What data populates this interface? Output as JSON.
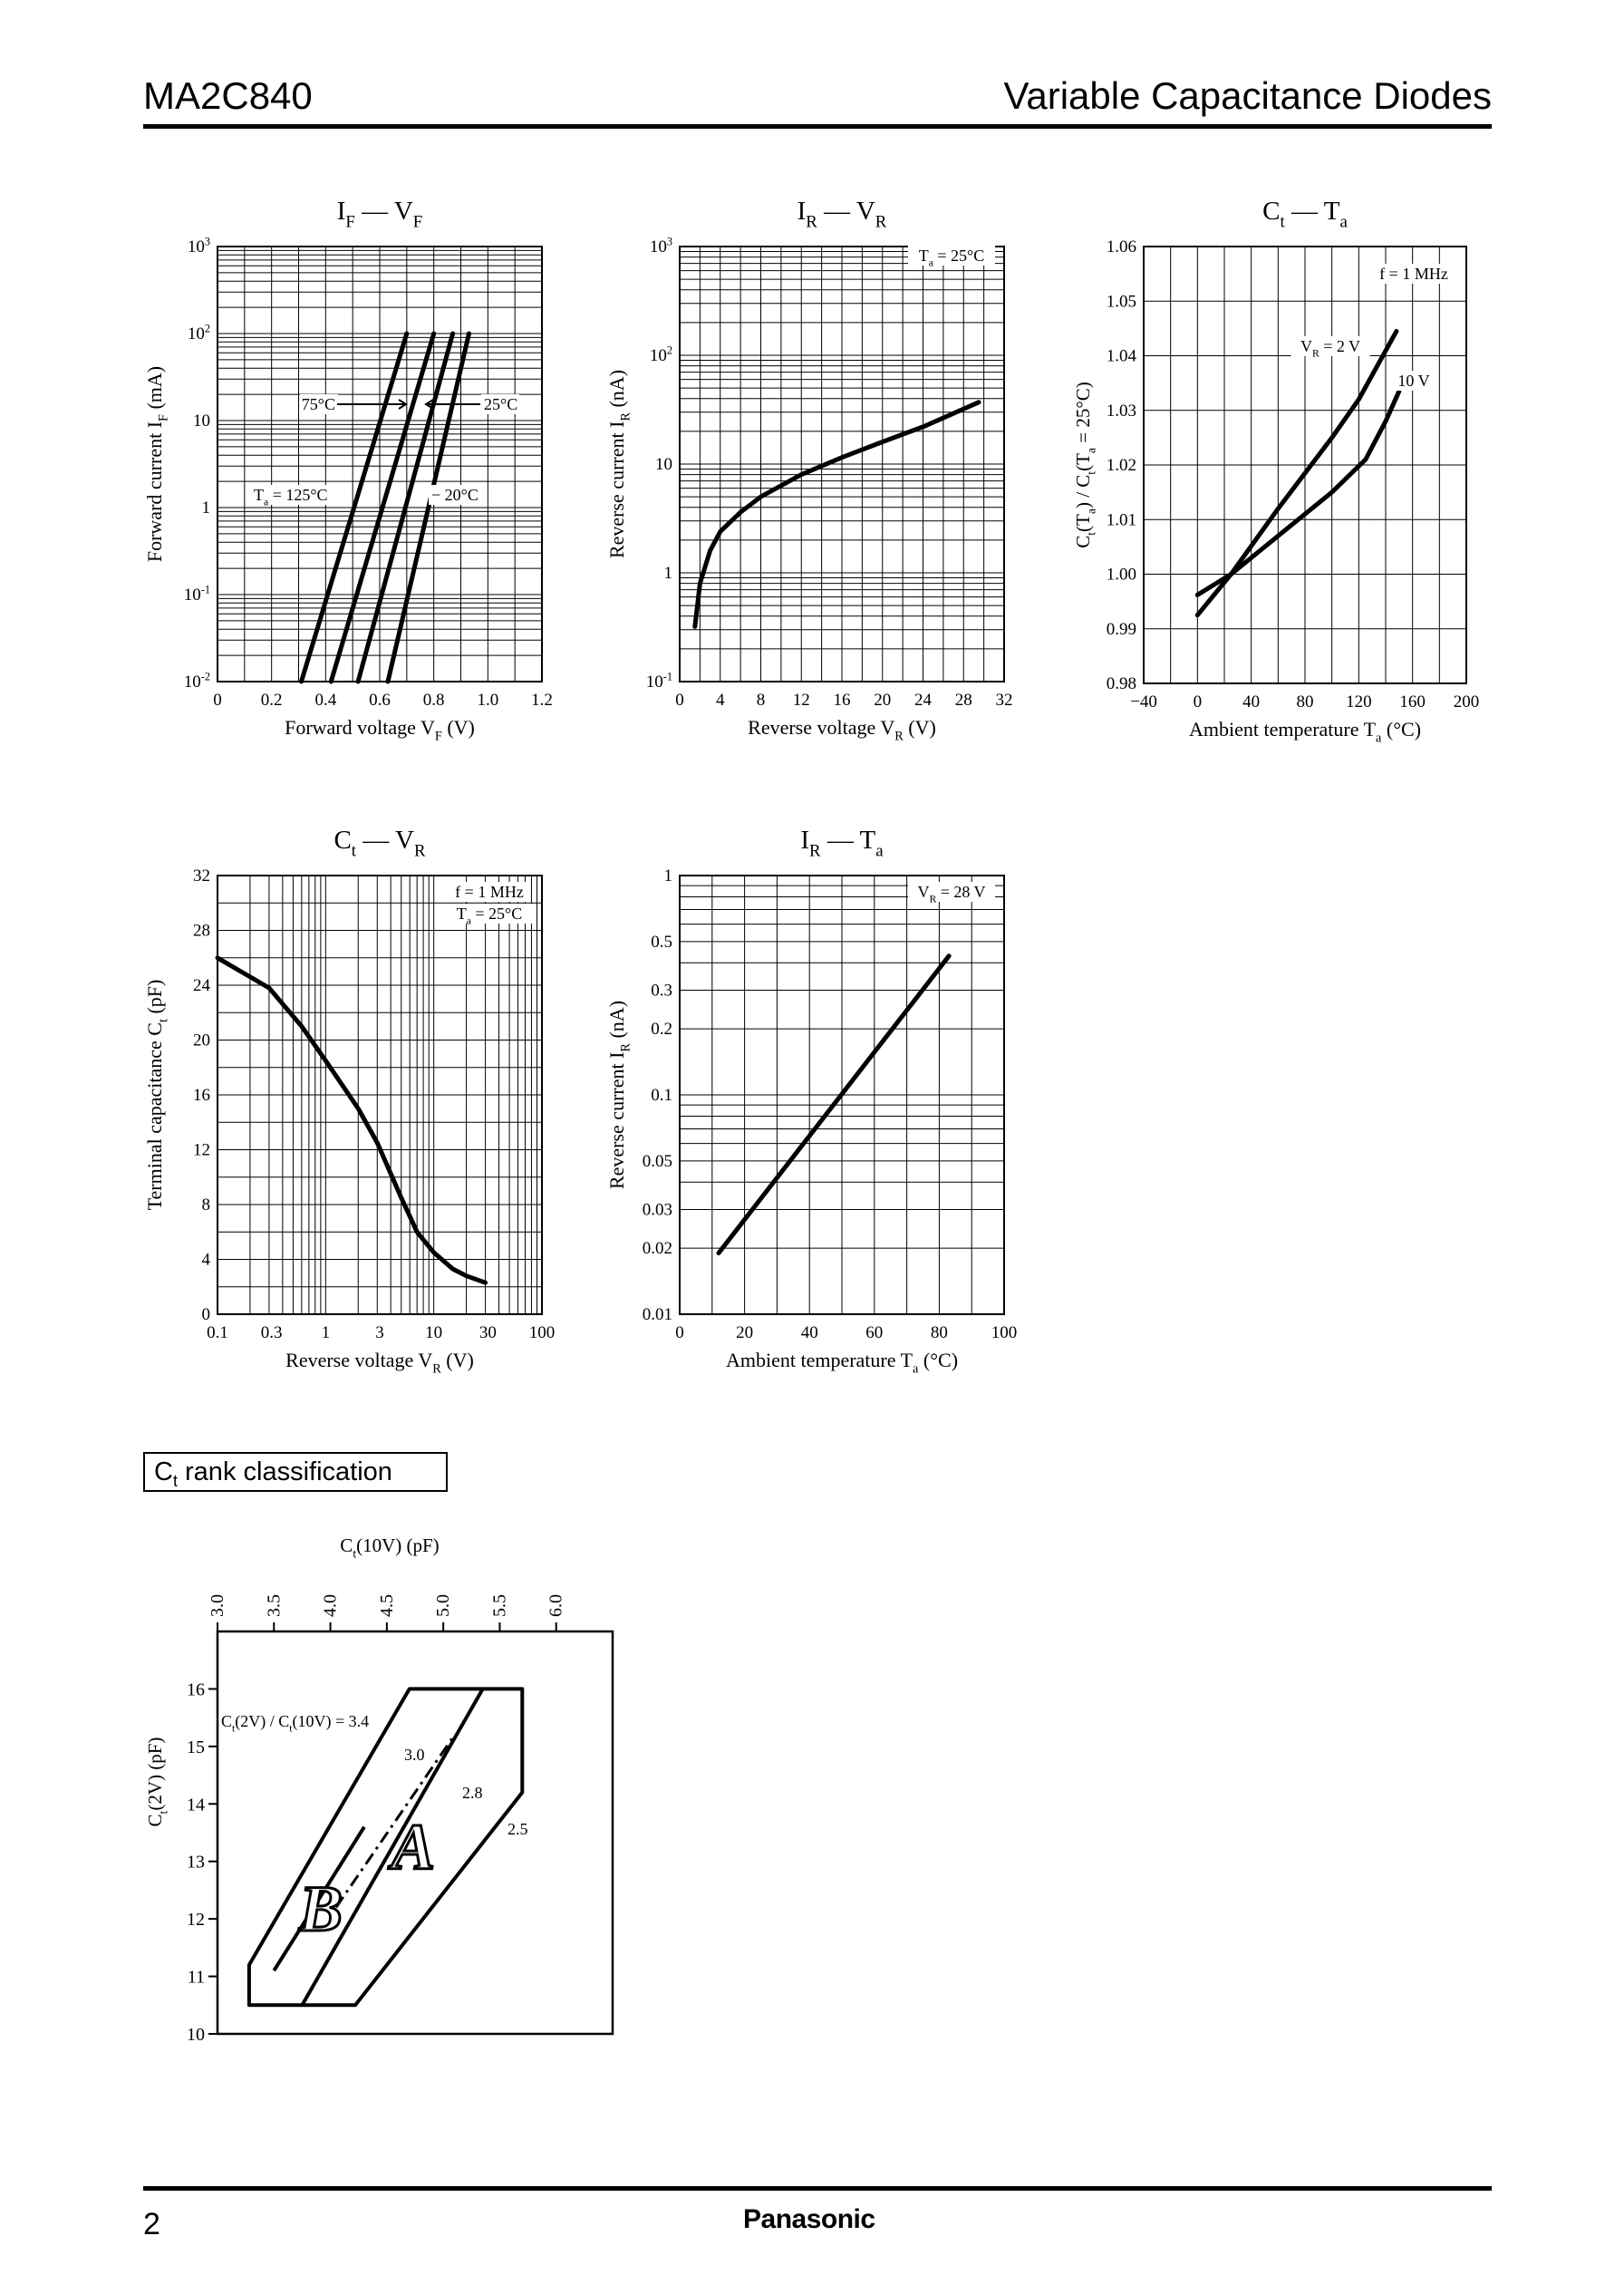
{
  "header": {
    "part_number": "MA2C840",
    "doc_type": "Variable Capacitance Diodes"
  },
  "footer": {
    "page": "2",
    "brand": "Panasonic"
  },
  "rank_section": {
    "title_prefix": "C",
    "title_sub": "t",
    "title_suffix": " rank classification"
  },
  "chart_data": [
    {
      "id": "if-vf",
      "type": "line",
      "title": "I_F — V_F",
      "xlabel": "Forward voltage V_F (V)",
      "ylabel": "Forward current I_F (mA)",
      "xlim": [
        0,
        1.2
      ],
      "ylim": [
        0.01,
        1000
      ],
      "yscale": "log",
      "xticks": [
        "0",
        "0.2",
        "0.4",
        "0.6",
        "0.8",
        "1.0",
        "1.2"
      ],
      "yticks": [
        "10^-2",
        "10^-1",
        "1",
        "10",
        "10^2",
        "10^3"
      ],
      "series": [
        {
          "name": "Ta = 125°C",
          "points": [
            [
              0.31,
              0.01
            ],
            [
              0.7,
              100
            ]
          ]
        },
        {
          "name": "75°C",
          "points": [
            [
              0.42,
              0.01
            ],
            [
              0.8,
              100
            ]
          ]
        },
        {
          "name": "25°C",
          "points": [
            [
              0.52,
              0.01
            ],
            [
              0.87,
              100
            ]
          ]
        },
        {
          "name": "−20°C",
          "points": [
            [
              0.63,
              0.01
            ],
            [
              0.93,
              100
            ]
          ]
        }
      ],
      "annotations": [
        "75°C",
        "25°C",
        "Ta = 125°C",
        "− 20°C"
      ]
    },
    {
      "id": "ir-vr",
      "type": "line",
      "title": "I_R — V_R",
      "xlabel": "Reverse voltage V_R (V)",
      "ylabel": "Reverse current I_R (nA)",
      "xlim": [
        0,
        32
      ],
      "ylim": [
        0.1,
        1000
      ],
      "yscale": "log",
      "xticks": [
        "0",
        "4",
        "8",
        "12",
        "16",
        "20",
        "24",
        "28",
        "32"
      ],
      "yticks": [
        "10^-1",
        "1",
        "10",
        "10^2",
        "10^3"
      ],
      "series": [
        {
          "name": "",
          "points": [
            [
              1.5,
              0.32
            ],
            [
              2,
              0.8
            ],
            [
              3,
              1.6
            ],
            [
              4,
              2.4
            ],
            [
              6,
              3.6
            ],
            [
              8,
              5.0
            ],
            [
              12,
              8.0
            ],
            [
              16,
              11.5
            ],
            [
              20,
              16
            ],
            [
              24,
              22
            ],
            [
              29.5,
              37
            ]
          ]
        }
      ],
      "annotations": [
        "Ta = 25°C"
      ]
    },
    {
      "id": "ct-ta",
      "type": "line",
      "title": "C_t — T_a",
      "xlabel": "Ambient temperature T_a (°C)",
      "ylabel": "C_t(T_a) / C_t(T_a = 25°C)",
      "xlim": [
        -40,
        200
      ],
      "ylim": [
        0.98,
        1.06
      ],
      "xticks": [
        "−40",
        "0",
        "40",
        "80",
        "120",
        "160",
        "200"
      ],
      "yticks": [
        "0.98",
        "0.99",
        "1.00",
        "1.01",
        "1.02",
        "1.03",
        "1.04",
        "1.05",
        "1.06"
      ],
      "series": [
        {
          "name": "VR = 2 V",
          "points": [
            [
              0,
              0.9925
            ],
            [
              25,
              1.0
            ],
            [
              60,
              1.012
            ],
            [
              100,
              1.025
            ],
            [
              120,
              1.032
            ],
            [
              148,
              1.0445
            ]
          ]
        },
        {
          "name": "10 V",
          "points": [
            [
              0,
              0.9962
            ],
            [
              25,
              1.0
            ],
            [
              60,
              1.007
            ],
            [
              100,
              1.015
            ],
            [
              125,
              1.021
            ],
            [
              140,
              1.028
            ],
            [
              150,
              1.0335
            ]
          ]
        }
      ],
      "annotations": [
        "f = 1 MHz",
        "VR = 2 V",
        "10 V"
      ]
    },
    {
      "id": "ct-vr",
      "type": "line",
      "title": "C_t — V_R",
      "xlabel": "Reverse voltage V_R (V)",
      "ylabel": "Terminal capacitance C_t (pF)",
      "xlim": [
        0.1,
        100
      ],
      "xscale": "log",
      "ylim": [
        0,
        32
      ],
      "xticks": [
        "0.1",
        "0.3",
        "1",
        "3",
        "10",
        "30",
        "100"
      ],
      "yticks": [
        "0",
        "4",
        "8",
        "12",
        "16",
        "20",
        "24",
        "28",
        "32"
      ],
      "series": [
        {
          "name": "",
          "points": [
            [
              0.1,
              26.0
            ],
            [
              0.3,
              23.8
            ],
            [
              0.6,
              21.0
            ],
            [
              1,
              18.5
            ],
            [
              2,
              15.0
            ],
            [
              3,
              12.5
            ],
            [
              5,
              8.5
            ],
            [
              7,
              6.0
            ],
            [
              10,
              4.5
            ],
            [
              15,
              3.3
            ],
            [
              20,
              2.8
            ],
            [
              30,
              2.3
            ]
          ]
        }
      ],
      "annotations": [
        "f = 1 MHz",
        "Ta = 25°C"
      ]
    },
    {
      "id": "ir-ta",
      "type": "line",
      "title": "I_R — T_a",
      "xlabel": "Ambient temperature T_a (°C)",
      "ylabel": "Reverse current I_R (nA)",
      "xlim": [
        0,
        100
      ],
      "ylim": [
        0.01,
        1
      ],
      "yscale": "log",
      "xticks": [
        "0",
        "20",
        "40",
        "60",
        "80",
        "100"
      ],
      "yticks": [
        "0.01",
        "0.02",
        "0.03",
        "0.05",
        "0.1",
        "0.2",
        "0.3",
        "0.5",
        "1"
      ],
      "series": [
        {
          "name": "",
          "points": [
            [
              12,
              0.019
            ],
            [
              83,
              0.43
            ]
          ]
        }
      ],
      "annotations": [
        "VR = 28 V"
      ]
    },
    {
      "id": "rank",
      "type": "diagram",
      "title": "C_t rank classification",
      "xlabel": "C_t(10V) (pF)",
      "ylabel": "C_t(2V) (pF)",
      "xlim": [
        3.0,
        6.5
      ],
      "ylim": [
        10,
        17.0
      ],
      "xticks": [
        "3.0",
        "3.5",
        "4.0",
        "4.5",
        "5.0",
        "5.5",
        "6.0"
      ],
      "yticks": [
        "10",
        "11",
        "12",
        "13",
        "14",
        "15",
        "16"
      ],
      "regions": [
        "B",
        "A"
      ],
      "annotations": [
        "C_t(2V) / C_t(10V) = 3.4",
        "3.0",
        "2.8",
        "2.5"
      ]
    }
  ]
}
